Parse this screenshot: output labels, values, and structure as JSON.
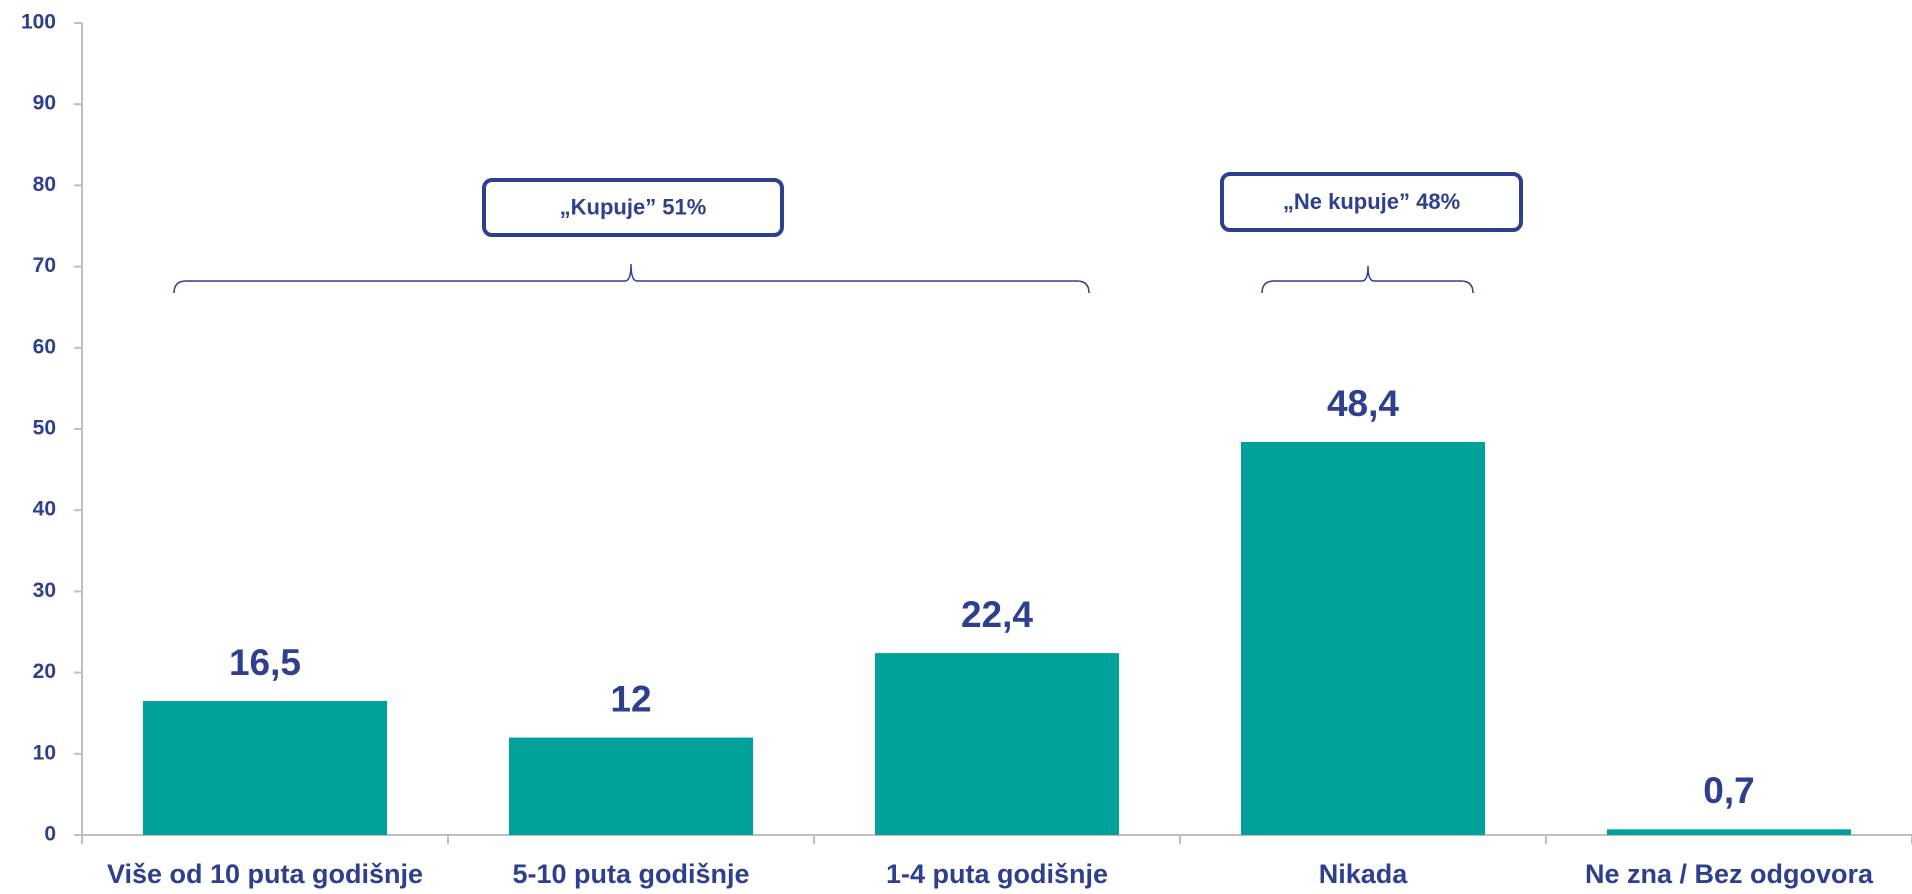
{
  "chart_data": {
    "type": "bar",
    "categories": [
      "Više od 10 puta godišnje",
      "5-10 puta godišnje",
      "1-4 puta godišnje",
      "Nikada",
      "Ne zna / Bez odgovora"
    ],
    "values": [
      16.5,
      12,
      22.4,
      48.4,
      0.7
    ],
    "value_labels": [
      "16,5",
      "12",
      "22,4",
      "48,4",
      "0,7"
    ],
    "color": "#00a19a",
    "ylim": [
      0,
      100
    ],
    "yticks": [
      0,
      10,
      20,
      30,
      40,
      50,
      60,
      70,
      80,
      90,
      100
    ],
    "grid": false,
    "annotations": [
      "„Kupuje” 51%",
      "„Ne kupuje” 48%"
    ]
  }
}
